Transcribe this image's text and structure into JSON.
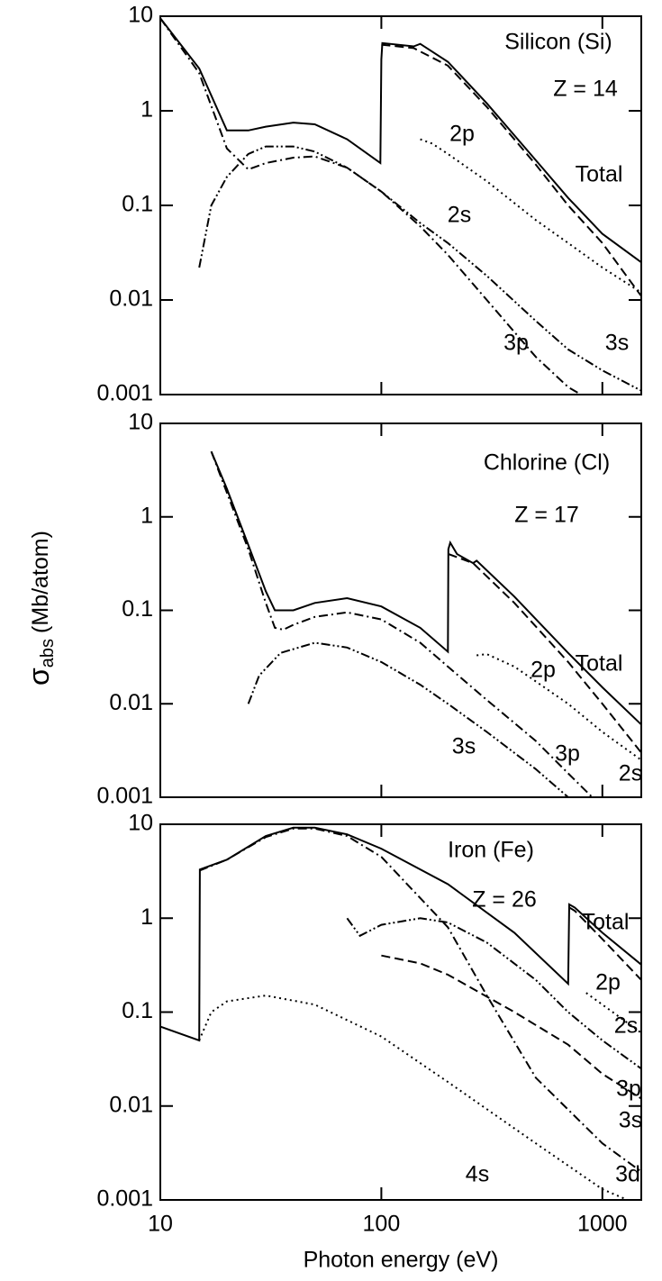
{
  "shared": {
    "ylabel_symbol": "σ",
    "ylabel_subscript": "abs",
    "ylabel_unit": "(Mb/atom)",
    "xlabel": "Photon energy (eV)"
  },
  "chart_data": [
    {
      "type": "line",
      "title": "Silicon (Si)",
      "subtitle": "Z = 14",
      "log_x": true,
      "log_y": true,
      "xlim": [
        10,
        1500
      ],
      "ylim": [
        0.001,
        10
      ],
      "xticks": [
        10,
        100,
        1000
      ],
      "yticks": [
        10,
        1,
        0.1,
        0.01,
        0.001
      ],
      "color": "#000000",
      "series": [
        {
          "name": "Total",
          "style": "solid",
          "x": [
            10,
            15,
            20,
            25,
            30,
            40,
            50,
            70,
            99,
            100,
            101,
            140,
            150,
            200,
            300,
            500,
            700,
            1000,
            1500
          ],
          "values": [
            9.5,
            2.8,
            0.62,
            0.62,
            0.68,
            0.75,
            0.72,
            0.5,
            0.28,
            3.5,
            5.2,
            4.8,
            5.1,
            3.3,
            1.2,
            0.3,
            0.12,
            0.05,
            0.025
          ]
        },
        {
          "name": "2p",
          "style": "dashed",
          "x": [
            100,
            140,
            200,
            300,
            500,
            700,
            1000,
            1500
          ],
          "values": [
            5,
            4.6,
            3,
            1.1,
            0.27,
            0.1,
            0.04,
            0.011
          ]
        },
        {
          "name": "2s",
          "style": "dotted",
          "x": [
            150,
            170,
            200,
            300,
            500,
            700,
            1000,
            1500
          ],
          "values": [
            0.5,
            0.45,
            0.35,
            0.18,
            0.07,
            0.04,
            0.022,
            0.012
          ]
        },
        {
          "name": "3p",
          "style": "dashdot",
          "x": [
            10,
            15,
            20,
            25,
            30,
            40,
            50,
            70,
            100,
            150,
            200,
            300,
            500,
            700,
            800
          ],
          "values": [
            9.5,
            2.5,
            0.4,
            0.24,
            0.28,
            0.32,
            0.33,
            0.25,
            0.14,
            0.06,
            0.03,
            0.01,
            0.0025,
            0.0012,
            0.001
          ]
        },
        {
          "name": "3s",
          "style": "dashdotdot",
          "x": [
            15,
            17,
            20,
            25,
            30,
            40,
            50,
            70,
            100,
            150,
            200,
            300,
            500,
            700,
            1000,
            1500
          ],
          "values": [
            0.022,
            0.1,
            0.2,
            0.35,
            0.42,
            0.42,
            0.37,
            0.25,
            0.14,
            0.065,
            0.04,
            0.018,
            0.006,
            0.003,
            0.0018,
            0.0011
          ]
        }
      ]
    },
    {
      "type": "line",
      "title": "Chlorine (Cl)",
      "subtitle": "Z = 17",
      "log_x": true,
      "log_y": true,
      "xlim": [
        10,
        1500
      ],
      "ylim": [
        0.001,
        10
      ],
      "xticks": [
        10,
        100,
        1000
      ],
      "yticks": [
        10,
        1,
        0.1,
        0.01,
        0.001
      ],
      "color": "#000000",
      "series": [
        {
          "name": "Total",
          "style": "solid",
          "x": [
            17,
            20,
            25,
            30,
            33,
            40,
            50,
            70,
            100,
            150,
            200,
            201,
            205,
            220,
            260,
            270,
            400,
            700,
            1000,
            1500
          ],
          "values": [
            5,
            2,
            0.5,
            0.16,
            0.1,
            0.1,
            0.12,
            0.135,
            0.11,
            0.065,
            0.036,
            0.45,
            0.53,
            0.4,
            0.32,
            0.34,
            0.14,
            0.035,
            0.015,
            0.006
          ]
        },
        {
          "name": "2p",
          "style": "dashed",
          "x": [
            201,
            220,
            260,
            400,
            700,
            1000,
            1500
          ],
          "values": [
            0.4,
            0.37,
            0.32,
            0.12,
            0.028,
            0.01,
            0.003
          ]
        },
        {
          "name": "3s",
          "style": "dashdotdot",
          "x": [
            25,
            28,
            35,
            50,
            70,
            100,
            150,
            200,
            300,
            500,
            700
          ],
          "values": [
            0.01,
            0.02,
            0.035,
            0.045,
            0.04,
            0.028,
            0.016,
            0.01,
            0.005,
            0.002,
            0.001
          ]
        },
        {
          "name": "3p",
          "style": "dashdot",
          "x": [
            17,
            25,
            30,
            33,
            36,
            40,
            50,
            70,
            100,
            150,
            200,
            300,
            500,
            700,
            900
          ],
          "values": [
            5,
            0.45,
            0.12,
            0.065,
            0.062,
            0.07,
            0.085,
            0.095,
            0.08,
            0.045,
            0.025,
            0.011,
            0.004,
            0.0018,
            0.001
          ]
        },
        {
          "name": "2s",
          "style": "dotted",
          "x": [
            270,
            300,
            400,
            700,
            1000,
            1500
          ],
          "values": [
            0.033,
            0.034,
            0.025,
            0.01,
            0.005,
            0.0025
          ]
        }
      ]
    },
    {
      "type": "line",
      "title": "Iron (Fe)",
      "subtitle": "Z = 26",
      "log_x": true,
      "log_y": true,
      "xlim": [
        10,
        1500
      ],
      "ylim": [
        0.001,
        10
      ],
      "xticks": [
        10,
        100,
        1000
      ],
      "yticks": [
        10,
        1,
        0.1,
        0.01,
        0.001
      ],
      "color": "#000000",
      "series": [
        {
          "name": "Total",
          "style": "solid",
          "x": [
            10,
            15,
            15.1,
            20,
            30,
            40,
            50,
            70,
            100,
            200,
            400,
            700,
            708,
            750,
            1000,
            1500
          ],
          "values": [
            0.07,
            0.05,
            3.3,
            4.2,
            7.5,
            9.2,
            9.2,
            7.8,
            5.5,
            2.3,
            0.7,
            0.2,
            1.4,
            1.3,
            0.7,
            0.32
          ]
        },
        {
          "name": "2p",
          "style": "dashed",
          "x": [
            708,
            750,
            1000,
            1500
          ],
          "values": [
            1.3,
            1.2,
            0.6,
            0.22
          ]
        },
        {
          "name": "2s",
          "style": "dotted",
          "x": [
            845,
            1000,
            1500
          ],
          "values": [
            0.16,
            0.12,
            0.06
          ]
        },
        {
          "name": "3p",
          "style": "dashed",
          "x": [
            100,
            150,
            200,
            400,
            700,
            1000,
            1500
          ],
          "values": [
            0.4,
            0.33,
            0.25,
            0.1,
            0.045,
            0.022,
            0.012
          ]
        },
        {
          "name": "3s",
          "style": "dashdotdot",
          "x": [
            70,
            80,
            100,
            150,
            200,
            300,
            500,
            700,
            1000,
            1500
          ],
          "values": [
            1.0,
            0.65,
            0.85,
            1.0,
            0.9,
            0.55,
            0.22,
            0.1,
            0.05,
            0.025
          ]
        },
        {
          "name": "4s",
          "style": "dotted",
          "x": [
            15,
            17,
            20,
            30,
            50,
            100,
            200,
            500,
            1000,
            1300
          ],
          "values": [
            0.05,
            0.1,
            0.13,
            0.15,
            0.12,
            0.055,
            0.018,
            0.004,
            0.0013,
            0.001
          ]
        },
        {
          "name": "3d",
          "style": "dashdot",
          "x": [
            15,
            20,
            30,
            40,
            50,
            70,
            100,
            200,
            300,
            500,
            1000,
            1500
          ],
          "values": [
            3.2,
            4.2,
            7.3,
            9,
            9,
            7.5,
            4.5,
            0.8,
            0.15,
            0.02,
            0.004,
            0.002
          ]
        }
      ]
    }
  ]
}
